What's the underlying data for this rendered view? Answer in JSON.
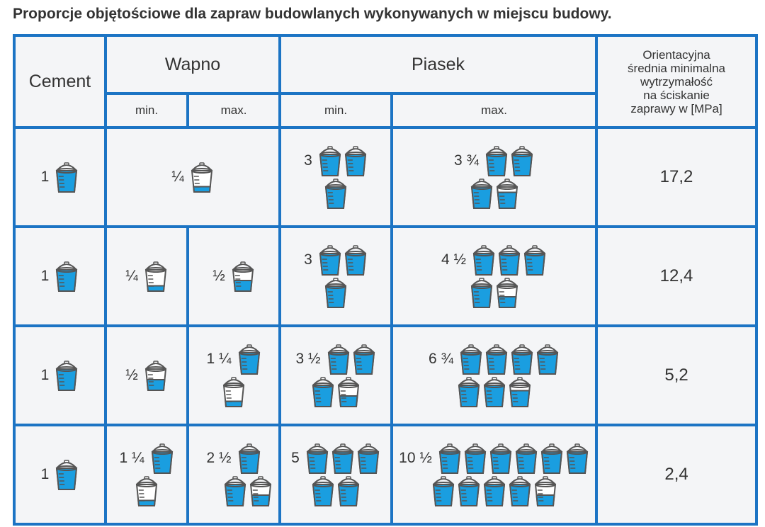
{
  "title": "Proporcje objętościowe dla zapraw budowlanych wykonywanych w miejscu budowy.",
  "colors": {
    "border": "#1c74c4",
    "fill": "#1a9ee0",
    "cell": "#f4f5f7"
  },
  "header": {
    "cement": "Cement",
    "wapno": "Wapno",
    "piasek": "Piasek",
    "min": "min.",
    "max": "max.",
    "strength": [
      "Orientacyjna",
      "średnia minimalna",
      "wytrzymałość",
      "na ściskanie",
      "zaprawy w [MPa]"
    ]
  },
  "rows": [
    {
      "cement": {
        "label": "1",
        "lines": [
          [
            1
          ]
        ]
      },
      "wapno_merged": {
        "label": "¼",
        "lines": [
          [
            0.25
          ]
        ]
      },
      "sand_min": {
        "label": "3",
        "lines": [
          [
            1,
            1
          ],
          [
            1
          ]
        ]
      },
      "sand_max": {
        "label": "3 ¾",
        "lines": [
          [
            1,
            1
          ],
          [
            1,
            0.75
          ]
        ]
      },
      "mpa": "17,2"
    },
    {
      "cement": {
        "label": "1",
        "lines": [
          [
            1
          ]
        ]
      },
      "wapno_min": {
        "label": "¼",
        "lines": [
          [
            0.25
          ]
        ]
      },
      "wapno_max": {
        "label": "½",
        "lines": [
          [
            0.5
          ]
        ]
      },
      "sand_min": {
        "label": "3",
        "lines": [
          [
            1,
            1
          ],
          [
            1
          ]
        ]
      },
      "sand_max": {
        "label": "4 ½",
        "lines": [
          [
            1,
            1,
            1
          ],
          [
            1,
            0.5
          ]
        ]
      },
      "mpa": "12,4"
    },
    {
      "cement": {
        "label": "1",
        "lines": [
          [
            1
          ]
        ]
      },
      "wapno_min": {
        "label": "½",
        "lines": [
          [
            0.5
          ]
        ]
      },
      "wapno_max": {
        "label": "1 ¼",
        "lines": [
          [
            1
          ],
          [
            0.25
          ]
        ]
      },
      "sand_min": {
        "label": "3 ½",
        "lines": [
          [
            1,
            1
          ],
          [
            1,
            0.5
          ]
        ]
      },
      "sand_max": {
        "label": "6 ¾",
        "lines": [
          [
            1,
            1,
            1,
            1
          ],
          [
            1,
            1,
            0.75
          ]
        ]
      },
      "mpa": "5,2"
    },
    {
      "cement": {
        "label": "1",
        "lines": [
          [
            1
          ]
        ]
      },
      "wapno_min": {
        "label": "1 ¼",
        "lines": [
          [
            1
          ],
          [
            0.25
          ]
        ]
      },
      "wapno_max": {
        "label": "2 ½",
        "lines": [
          [
            1
          ],
          [
            1,
            0.5
          ]
        ]
      },
      "sand_min": {
        "label": "5",
        "lines": [
          [
            1,
            1,
            1
          ],
          [
            1,
            1
          ]
        ]
      },
      "sand_max": {
        "label": "10 ½",
        "lines": [
          [
            1,
            1,
            1,
            1,
            1,
            1
          ],
          [
            1,
            1,
            1,
            1,
            0.5
          ]
        ]
      },
      "mpa": "2,4"
    }
  ]
}
